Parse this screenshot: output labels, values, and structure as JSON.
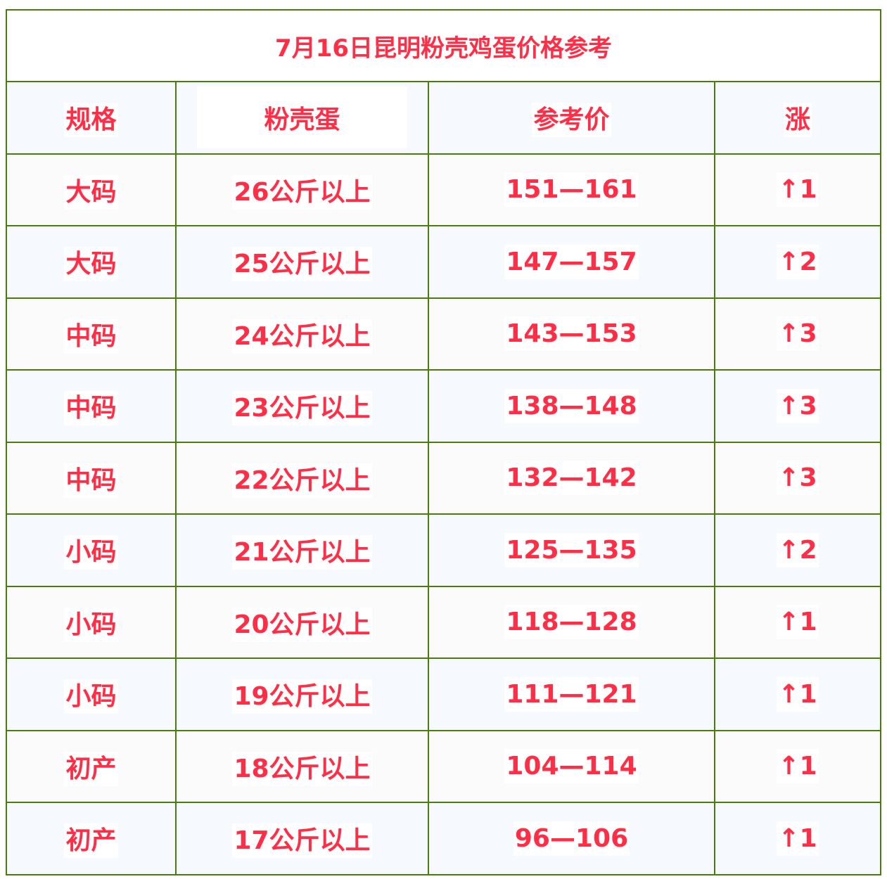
{
  "title": "7月16日昆明粉壳鸡蛋价格参考",
  "headers": [
    "规格",
    "粉壳蛋",
    "参考价",
    "涨"
  ],
  "rows": [
    {
      "size": "大码",
      "weight": "26公斤以上",
      "price": "151—161",
      "change": "↑1"
    },
    {
      "size": "大码",
      "weight": "25公斤以上",
      "price": "147—157",
      "change": "↑2"
    },
    {
      "size": "中码",
      "weight": "24公斤以上",
      "price": "143—153",
      "change": "↑3"
    },
    {
      "size": "中码",
      "weight": "23公斤以上",
      "price": "138—148",
      "change": "↑3"
    },
    {
      "size": "中码",
      "weight": "22公斤以上",
      "price": "132—142",
      "change": "↑3"
    },
    {
      "size": "小码",
      "weight": "21公斤以上",
      "price": "125—135",
      "change": "↑2"
    },
    {
      "size": "小码",
      "weight": "20公斤以上",
      "price": "118—128",
      "change": "↑1"
    },
    {
      "size": "小码",
      "weight": "19公斤以上",
      "price": "111—121",
      "change": "↑1"
    },
    {
      "size": "初产",
      "weight": "18公斤以上",
      "price": "104—114",
      "change": "↑1"
    },
    {
      "size": "初产",
      "weight": "17公斤以上",
      "price": "96—106",
      "change": "↑1"
    }
  ],
  "colors": {
    "text": "#ff2e47",
    "border": "#4a7c0a",
    "row_alt": "#f6f9fe"
  }
}
